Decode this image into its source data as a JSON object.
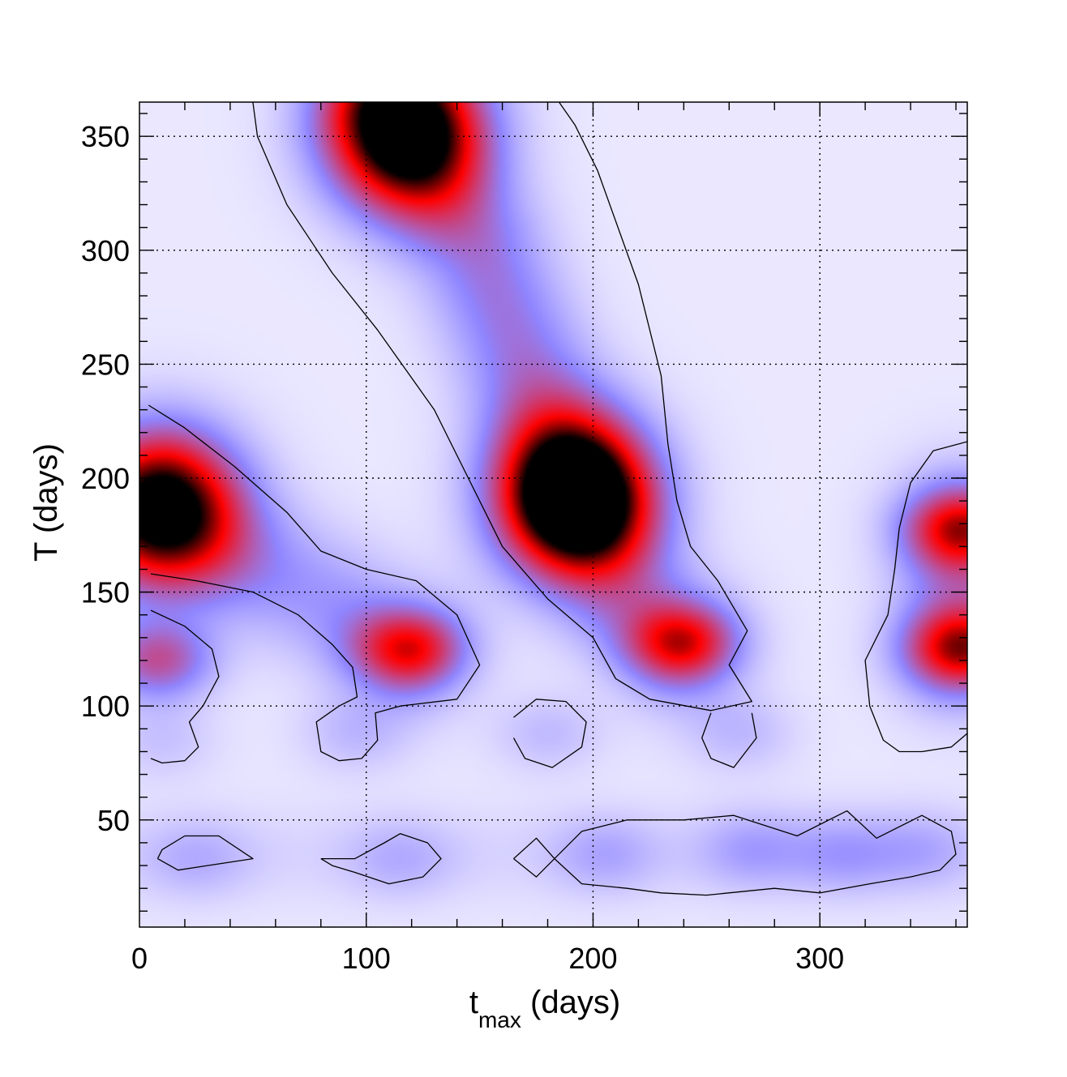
{
  "chart_data": {
    "type": "heatmap",
    "title": "",
    "xlabel": "t",
    "xlabel_subscript": "max",
    "xlabel_unit": " (days)",
    "ylabel": "T (days)",
    "xlim": [
      0,
      365
    ],
    "ylim": [
      3,
      365
    ],
    "x_ticks": [
      0,
      100,
      200,
      300
    ],
    "y_ticks": [
      50,
      100,
      150,
      200,
      250,
      300,
      350
    ],
    "grid": true,
    "colormap": [
      "#f4f2ff",
      "#8f85ff",
      "#ff0000",
      "#000000"
    ],
    "peaks": [
      {
        "x": 117,
        "y": 353,
        "amplitude": 1.0
      },
      {
        "x": 192,
        "y": 192,
        "amplitude": 1.0
      },
      {
        "x": 10,
        "y": 186,
        "amplitude": 0.97
      },
      {
        "x": 118,
        "y": 125,
        "amplitude": 0.52
      },
      {
        "x": 238,
        "y": 128,
        "amplitude": 0.52
      },
      {
        "x": 362,
        "y": 126,
        "amplitude": 0.55
      },
      {
        "x": 362,
        "y": 177,
        "amplitude": 0.52
      },
      {
        "x": 8,
        "y": 120,
        "amplitude": 0.42
      },
      {
        "x": 95,
        "y": 88,
        "amplitude": 0.12
      },
      {
        "x": 180,
        "y": 88,
        "amplitude": 0.12
      },
      {
        "x": 265,
        "y": 88,
        "amplitude": 0.12
      },
      {
        "x": 10,
        "y": 85,
        "amplitude": 0.1
      },
      {
        "x": 25,
        "y": 33,
        "amplitude": 0.12
      },
      {
        "x": 115,
        "y": 33,
        "amplitude": 0.12
      },
      {
        "x": 205,
        "y": 35,
        "amplitude": 0.14
      },
      {
        "x": 270,
        "y": 37,
        "amplitude": 0.16
      },
      {
        "x": 310,
        "y": 35,
        "amplitude": 0.16
      },
      {
        "x": 345,
        "y": 37,
        "amplitude": 0.13
      }
    ],
    "ridges": [
      {
        "points": [
          [
            108,
            365
          ],
          [
            150,
            300
          ],
          [
            168,
            255
          ],
          [
            178,
            230
          ],
          [
            192,
            192
          ]
        ],
        "amplitude": 0.32
      },
      {
        "points": [
          [
            10,
            186
          ],
          [
            45,
            165
          ],
          [
            85,
            145
          ],
          [
            118,
            125
          ]
        ],
        "amplitude": 0.22
      },
      {
        "points": [
          [
            192,
            192
          ],
          [
            215,
            150
          ],
          [
            238,
            128
          ]
        ],
        "amplitude": 0.26
      },
      {
        "points": [
          [
            362,
            177
          ],
          [
            362,
            126
          ]
        ],
        "amplitude": 0.3
      }
    ],
    "contours": [
      [
        [
          50,
          365
        ],
        [
          52,
          350
        ],
        [
          65,
          320
        ],
        [
          85,
          290
        ],
        [
          105,
          265
        ],
        [
          130,
          230
        ],
        [
          145,
          200
        ],
        [
          160,
          170
        ],
        [
          180,
          147
        ],
        [
          200,
          130
        ],
        [
          210,
          112
        ],
        [
          225,
          103
        ],
        [
          252,
          98
        ],
        [
          270,
          102
        ],
        [
          260,
          118
        ],
        [
          268,
          133
        ],
        [
          255,
          155
        ],
        [
          243,
          170
        ],
        [
          237,
          190
        ],
        [
          233,
          215
        ],
        [
          230,
          245
        ],
        [
          220,
          285
        ],
        [
          202,
          335
        ],
        [
          192,
          355
        ],
        [
          185,
          365
        ]
      ],
      [
        [
          4,
          232
        ],
        [
          20,
          222
        ],
        [
          42,
          205
        ],
        [
          65,
          185
        ],
        [
          80,
          168
        ],
        [
          100,
          160
        ],
        [
          122,
          155
        ],
        [
          140,
          140
        ],
        [
          150,
          118
        ],
        [
          140,
          103
        ],
        [
          115,
          100
        ],
        [
          104,
          97
        ],
        [
          105,
          85
        ],
        [
          98,
          77
        ],
        [
          88,
          76
        ],
        [
          80,
          80
        ],
        [
          78,
          93
        ],
        [
          88,
          100
        ],
        [
          96,
          104
        ],
        [
          94,
          117
        ],
        [
          85,
          127
        ],
        [
          70,
          140
        ],
        [
          50,
          150
        ],
        [
          25,
          155
        ],
        [
          5,
          158
        ]
      ],
      [
        [
          5,
          142
        ],
        [
          20,
          135
        ],
        [
          32,
          125
        ],
        [
          35,
          113
        ],
        [
          28,
          100
        ],
        [
          22,
          93
        ],
        [
          26,
          82
        ],
        [
          20,
          76
        ],
        [
          10,
          75
        ],
        [
          5,
          77
        ]
      ],
      [
        [
          165,
          95
        ],
        [
          175,
          103
        ],
        [
          188,
          102
        ],
        [
          197,
          93
        ],
        [
          195,
          82
        ],
        [
          182,
          73
        ],
        [
          170,
          77
        ],
        [
          165,
          86
        ]
      ],
      [
        [
          270,
          97
        ],
        [
          272,
          86
        ],
        [
          262,
          73
        ],
        [
          252,
          77
        ],
        [
          248,
          86
        ],
        [
          252,
          97
        ]
      ],
      [
        [
          365,
          216
        ],
        [
          350,
          212
        ],
        [
          340,
          198
        ],
        [
          335,
          178
        ],
        [
          333,
          160
        ],
        [
          330,
          140
        ],
        [
          320,
          120
        ],
        [
          322,
          100
        ],
        [
          328,
          85
        ],
        [
          335,
          80
        ],
        [
          345,
          80
        ],
        [
          358,
          82
        ],
        [
          365,
          88
        ]
      ],
      [
        [
          8,
          33
        ],
        [
          17,
          28
        ],
        [
          30,
          30
        ],
        [
          50,
          33
        ],
        [
          35,
          43
        ],
        [
          20,
          43
        ],
        [
          10,
          37
        ],
        [
          8,
          33
        ]
      ],
      [
        [
          80,
          33
        ],
        [
          95,
          33
        ],
        [
          108,
          40
        ],
        [
          115,
          44
        ],
        [
          127,
          40
        ],
        [
          133,
          33
        ],
        [
          125,
          25
        ],
        [
          110,
          22
        ],
        [
          95,
          27
        ],
        [
          85,
          30
        ],
        [
          80,
          33
        ]
      ],
      [
        [
          165,
          33
        ],
        [
          175,
          42
        ],
        [
          183,
          33
        ],
        [
          175,
          25
        ],
        [
          165,
          33
        ]
      ],
      [
        [
          183,
          33
        ],
        [
          195,
          45
        ],
        [
          215,
          50
        ],
        [
          240,
          50
        ],
        [
          262,
          52
        ],
        [
          290,
          43
        ],
        [
          312,
          54
        ],
        [
          325,
          42
        ],
        [
          345,
          52
        ],
        [
          358,
          45
        ],
        [
          360,
          35
        ],
        [
          353,
          28
        ],
        [
          340,
          25
        ],
        [
          322,
          22
        ],
        [
          300,
          18
        ],
        [
          280,
          20
        ],
        [
          250,
          17
        ],
        [
          230,
          18
        ],
        [
          215,
          20
        ],
        [
          195,
          22
        ],
        [
          183,
          33
        ]
      ]
    ]
  }
}
